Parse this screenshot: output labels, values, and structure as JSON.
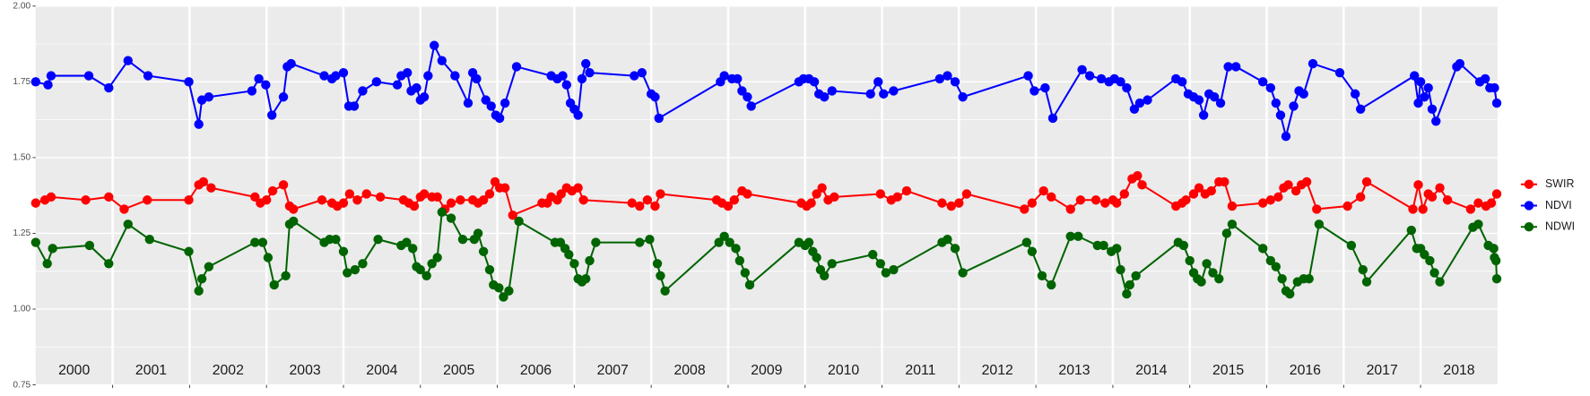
{
  "chart_data": {
    "type": "line",
    "xlim": [
      2000,
      2019
    ],
    "xticks": [
      2001,
      2002,
      2003,
      2004,
      2005,
      2006,
      2007,
      2008,
      2009,
      2010,
      2011,
      2012,
      2013,
      2014,
      2015,
      2016,
      2017,
      2018
    ],
    "year_labels": [
      "2000",
      "2001",
      "2002",
      "2003",
      "2004",
      "2005",
      "2006",
      "2007",
      "2008",
      "2009",
      "2010",
      "2011",
      "2012",
      "2013",
      "2014",
      "2015",
      "2016",
      "2017",
      "2018"
    ],
    "ylim": [
      0.75,
      2.0
    ],
    "yticks": [
      {
        "value": 0.75,
        "label": "0.75"
      },
      {
        "value": 1,
        "label": "1.00"
      },
      {
        "value": 1.25,
        "label": "1.25"
      },
      {
        "value": 1.5,
        "label": "1.50"
      },
      {
        "value": 1.75,
        "label": "1.75"
      },
      {
        "value": 2,
        "label": "2.00"
      }
    ],
    "grid": true,
    "legend": "right",
    "series": [
      {
        "name": "SWIR",
        "color": "#ff0000",
        "x": [
          2000.0,
          2000.12,
          2000.2,
          2000.65,
          2000.95,
          2001.15,
          2001.45,
          2001.99,
          2002.12,
          2002.18,
          2002.28,
          2002.85,
          2002.92,
          2003.0,
          2003.08,
          2003.22,
          2003.3,
          2003.35,
          2003.72,
          2003.85,
          2003.92,
          2004.0,
          2004.08,
          2004.18,
          2004.3,
          2004.48,
          2004.78,
          2004.85,
          2004.92,
          2005.0,
          2005.05,
          2005.15,
          2005.22,
          2005.32,
          2005.4,
          2005.52,
          2005.68,
          2005.75,
          2005.82,
          2005.9,
          2005.97,
          2006.03,
          2006.1,
          2006.2,
          2006.58,
          2006.65,
          2006.7,
          2006.78,
          2006.83,
          2006.9,
          2006.97,
          2007.05,
          2007.12,
          2007.75,
          2007.85,
          2007.95,
          2008.05,
          2008.12,
          2008.85,
          2008.92,
          2009.0,
          2009.08,
          2009.18,
          2009.25,
          2009.95,
          2010.02,
          2010.08,
          2010.15,
          2010.22,
          2010.3,
          2010.38,
          2010.98,
          2011.12,
          2011.2,
          2011.32,
          2011.78,
          2011.9,
          2012.0,
          2012.1,
          2012.85,
          2012.95,
          2013.1,
          2013.2,
          2013.45,
          2013.58,
          2013.78,
          2013.9,
          2014.0,
          2014.05,
          2014.15,
          2014.25,
          2014.32,
          2014.38,
          2014.82,
          2014.9,
          2014.95,
          2015.05,
          2015.12,
          2015.2,
          2015.28,
          2015.38,
          2015.45,
          2015.55,
          2015.95,
          2016.05,
          2016.15,
          2016.22,
          2016.28,
          2016.38,
          2016.45,
          2016.52,
          2016.65,
          2017.05,
          2017.22,
          2017.3,
          2017.9,
          2017.97,
          2018.03,
          2018.1,
          2018.15,
          2018.25,
          2018.35,
          2018.65,
          2018.75,
          2018.85,
          2018.92,
          2018.99
        ],
        "values": [
          1.35,
          1.36,
          1.37,
          1.36,
          1.37,
          1.33,
          1.36,
          1.36,
          1.41,
          1.42,
          1.4,
          1.37,
          1.35,
          1.36,
          1.39,
          1.41,
          1.34,
          1.33,
          1.36,
          1.35,
          1.34,
          1.35,
          1.38,
          1.36,
          1.38,
          1.37,
          1.36,
          1.35,
          1.34,
          1.37,
          1.38,
          1.37,
          1.37,
          1.33,
          1.35,
          1.36,
          1.36,
          1.35,
          1.36,
          1.38,
          1.42,
          1.4,
          1.4,
          1.31,
          1.35,
          1.35,
          1.37,
          1.36,
          1.38,
          1.4,
          1.39,
          1.4,
          1.36,
          1.35,
          1.34,
          1.36,
          1.34,
          1.38,
          1.36,
          1.35,
          1.34,
          1.36,
          1.39,
          1.38,
          1.35,
          1.34,
          1.35,
          1.38,
          1.4,
          1.36,
          1.37,
          1.38,
          1.36,
          1.37,
          1.39,
          1.35,
          1.34,
          1.35,
          1.38,
          1.33,
          1.35,
          1.39,
          1.37,
          1.33,
          1.36,
          1.36,
          1.35,
          1.36,
          1.35,
          1.38,
          1.43,
          1.44,
          1.41,
          1.34,
          1.35,
          1.36,
          1.38,
          1.4,
          1.38,
          1.39,
          1.42,
          1.42,
          1.34,
          1.35,
          1.36,
          1.37,
          1.4,
          1.41,
          1.39,
          1.41,
          1.42,
          1.33,
          1.34,
          1.37,
          1.42,
          1.33,
          1.41,
          1.33,
          1.38,
          1.37,
          1.4,
          1.36,
          1.33,
          1.35,
          1.34,
          1.35,
          1.38
        ]
      },
      {
        "name": "NDVI",
        "color": "#0000ff",
        "x": [
          2000.0,
          2000.16,
          2000.2,
          2000.69,
          2000.95,
          2001.2,
          2001.46,
          2001.99,
          2002.12,
          2002.16,
          2002.25,
          2002.81,
          2002.9,
          2002.99,
          2003.07,
          2003.22,
          2003.27,
          2003.32,
          2003.75,
          2003.85,
          2003.9,
          2004.0,
          2004.07,
          2004.14,
          2004.25,
          2004.43,
          2004.7,
          2004.75,
          2004.83,
          2004.88,
          2004.95,
          2005.0,
          2005.05,
          2005.1,
          2005.18,
          2005.28,
          2005.45,
          2005.62,
          2005.68,
          2005.73,
          2005.85,
          2005.92,
          2005.98,
          2006.03,
          2006.1,
          2006.25,
          2006.7,
          2006.78,
          2006.85,
          2006.9,
          2006.95,
          2007.0,
          2007.05,
          2007.1,
          2007.15,
          2007.2,
          2007.78,
          2007.88,
          2008.0,
          2008.05,
          2008.1,
          2008.9,
          2008.95,
          2009.05,
          2009.12,
          2009.18,
          2009.25,
          2009.3,
          2009.92,
          2009.98,
          2010.05,
          2010.12,
          2010.18,
          2010.25,
          2010.35,
          2010.85,
          2010.95,
          2011.02,
          2011.15,
          2011.75,
          2011.85,
          2011.95,
          2012.05,
          2012.9,
          2012.98,
          2013.12,
          2013.22,
          2013.6,
          2013.7,
          2013.85,
          2013.95,
          2014.02,
          2014.1,
          2014.18,
          2014.28,
          2014.35,
          2014.45,
          2014.82,
          2014.9,
          2014.98,
          2015.05,
          2015.12,
          2015.18,
          2015.25,
          2015.32,
          2015.4,
          2015.5,
          2015.6,
          2015.95,
          2016.05,
          2016.12,
          2016.18,
          2016.25,
          2016.35,
          2016.42,
          2016.48,
          2016.6,
          2016.95,
          2017.15,
          2017.22,
          2017.92,
          2017.97,
          2018.0,
          2018.05,
          2018.1,
          2018.15,
          2018.2,
          2018.47,
          2018.51,
          2018.77,
          2018.84,
          2018.9,
          2018.96,
          2018.99
        ],
        "values": [
          1.75,
          1.74,
          1.77,
          1.77,
          1.73,
          1.82,
          1.77,
          1.75,
          1.61,
          1.69,
          1.7,
          1.72,
          1.76,
          1.74,
          1.64,
          1.7,
          1.8,
          1.81,
          1.77,
          1.76,
          1.77,
          1.78,
          1.67,
          1.67,
          1.72,
          1.75,
          1.74,
          1.77,
          1.78,
          1.72,
          1.73,
          1.69,
          1.7,
          1.77,
          1.87,
          1.82,
          1.77,
          1.68,
          1.78,
          1.76,
          1.69,
          1.67,
          1.64,
          1.63,
          1.68,
          1.8,
          1.77,
          1.76,
          1.77,
          1.74,
          1.68,
          1.66,
          1.64,
          1.76,
          1.81,
          1.78,
          1.77,
          1.78,
          1.71,
          1.7,
          1.63,
          1.75,
          1.77,
          1.76,
          1.76,
          1.72,
          1.7,
          1.67,
          1.75,
          1.76,
          1.76,
          1.75,
          1.71,
          1.7,
          1.72,
          1.71,
          1.75,
          1.71,
          1.72,
          1.76,
          1.77,
          1.75,
          1.7,
          1.77,
          1.72,
          1.73,
          1.63,
          1.79,
          1.77,
          1.76,
          1.75,
          1.76,
          1.75,
          1.73,
          1.66,
          1.68,
          1.69,
          1.76,
          1.75,
          1.71,
          1.7,
          1.69,
          1.64,
          1.71,
          1.7,
          1.68,
          1.8,
          1.8,
          1.75,
          1.73,
          1.68,
          1.64,
          1.57,
          1.67,
          1.72,
          1.71,
          1.81,
          1.78,
          1.71,
          1.66,
          1.77,
          1.68,
          1.75,
          1.7,
          1.73,
          1.66,
          1.62,
          1.8,
          1.81,
          1.75,
          1.76,
          1.73,
          1.73,
          1.68
        ]
      },
      {
        "name": "NDWI",
        "color": "#006400",
        "x": [
          2000.0,
          2000.15,
          2000.22,
          2000.7,
          2000.95,
          2001.2,
          2001.48,
          2001.99,
          2002.12,
          2002.16,
          2002.25,
          2002.85,
          2002.95,
          2003.02,
          2003.1,
          2003.25,
          2003.3,
          2003.35,
          2003.75,
          2003.82,
          2003.9,
          2004.0,
          2004.05,
          2004.15,
          2004.25,
          2004.45,
          2004.75,
          2004.82,
          2004.9,
          2004.95,
          2005.0,
          2005.08,
          2005.15,
          2005.22,
          2005.28,
          2005.4,
          2005.55,
          2005.7,
          2005.75,
          2005.82,
          2005.9,
          2005.95,
          2006.02,
          2006.08,
          2006.15,
          2006.28,
          2006.75,
          2006.82,
          2006.88,
          2006.93,
          2007.0,
          2007.05,
          2007.1,
          2007.15,
          2007.2,
          2007.28,
          2007.85,
          2007.98,
          2008.08,
          2008.12,
          2008.18,
          2008.88,
          2008.95,
          2009.02,
          2009.1,
          2009.15,
          2009.22,
          2009.28,
          2009.92,
          2010.0,
          2010.05,
          2010.1,
          2010.15,
          2010.2,
          2010.25,
          2010.35,
          2010.88,
          2010.98,
          2011.05,
          2011.15,
          2011.78,
          2011.85,
          2011.95,
          2012.05,
          2012.88,
          2012.95,
          2013.08,
          2013.2,
          2013.45,
          2013.55,
          2013.8,
          2013.88,
          2013.98,
          2014.05,
          2014.1,
          2014.18,
          2014.22,
          2014.3,
          2014.85,
          2014.92,
          2015.0,
          2015.05,
          2015.1,
          2015.15,
          2015.22,
          2015.3,
          2015.38,
          2015.48,
          2015.55,
          2015.95,
          2016.05,
          2016.12,
          2016.2,
          2016.25,
          2016.3,
          2016.4,
          2016.48,
          2016.55,
          2016.68,
          2017.1,
          2017.25,
          2017.3,
          2017.88,
          2017.95,
          2018.0,
          2018.05,
          2018.12,
          2018.18,
          2018.25,
          2018.68,
          2018.75,
          2018.88,
          2018.95,
          2018.96,
          2018.98,
          2018.99
        ],
        "values": [
          1.22,
          1.15,
          1.2,
          1.21,
          1.15,
          1.28,
          1.23,
          1.19,
          1.06,
          1.1,
          1.14,
          1.22,
          1.22,
          1.17,
          1.08,
          1.11,
          1.28,
          1.29,
          1.22,
          1.23,
          1.23,
          1.19,
          1.12,
          1.13,
          1.15,
          1.23,
          1.21,
          1.22,
          1.2,
          1.14,
          1.13,
          1.11,
          1.15,
          1.17,
          1.32,
          1.3,
          1.23,
          1.23,
          1.25,
          1.19,
          1.13,
          1.08,
          1.07,
          1.04,
          1.06,
          1.29,
          1.22,
          1.22,
          1.2,
          1.18,
          1.15,
          1.1,
          1.09,
          1.1,
          1.16,
          1.22,
          1.22,
          1.23,
          1.15,
          1.11,
          1.06,
          1.22,
          1.24,
          1.22,
          1.2,
          1.16,
          1.12,
          1.08,
          1.22,
          1.21,
          1.22,
          1.19,
          1.17,
          1.13,
          1.11,
          1.15,
          1.18,
          1.15,
          1.12,
          1.13,
          1.22,
          1.23,
          1.2,
          1.12,
          1.22,
          1.19,
          1.11,
          1.08,
          1.24,
          1.24,
          1.21,
          1.21,
          1.19,
          1.2,
          1.13,
          1.05,
          1.08,
          1.11,
          1.22,
          1.21,
          1.16,
          1.12,
          1.1,
          1.09,
          1.15,
          1.12,
          1.1,
          1.25,
          1.28,
          1.2,
          1.16,
          1.14,
          1.1,
          1.06,
          1.05,
          1.09,
          1.1,
          1.1,
          1.28,
          1.21,
          1.13,
          1.09,
          1.26,
          1.2,
          1.2,
          1.18,
          1.16,
          1.12,
          1.09,
          1.27,
          1.28,
          1.21,
          1.2,
          1.17,
          1.16,
          1.1
        ]
      }
    ]
  }
}
